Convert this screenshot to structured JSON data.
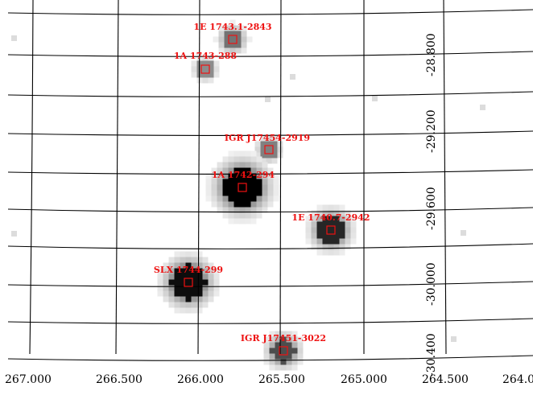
{
  "map": {
    "background": "#ffffff",
    "grid_color": "#000000",
    "marker_color": "#ee1111",
    "ra_labels": [
      "267.000",
      "266.500",
      "266.000",
      "265.500",
      "265.000",
      "264.500",
      "264.0"
    ],
    "dec_labels": [
      "-28.800",
      "-29.200",
      "-29.600",
      "-30.000",
      "-30.400"
    ],
    "sources": [
      {
        "name": "1E 1743.1-2843",
        "brightness": 0.55
      },
      {
        "name": "1A 1743-288",
        "brightness": 0.45
      },
      {
        "name": "IGR J17454-2919",
        "brightness": 0.5
      },
      {
        "name": "1A 1742-294",
        "brightness": 1.0
      },
      {
        "name": "1E 1740.7-2942",
        "brightness": 0.85
      },
      {
        "name": "SLX 1744-299",
        "brightness": 0.95
      },
      {
        "name": "IGR J17451-3022",
        "brightness": 0.7
      }
    ]
  }
}
